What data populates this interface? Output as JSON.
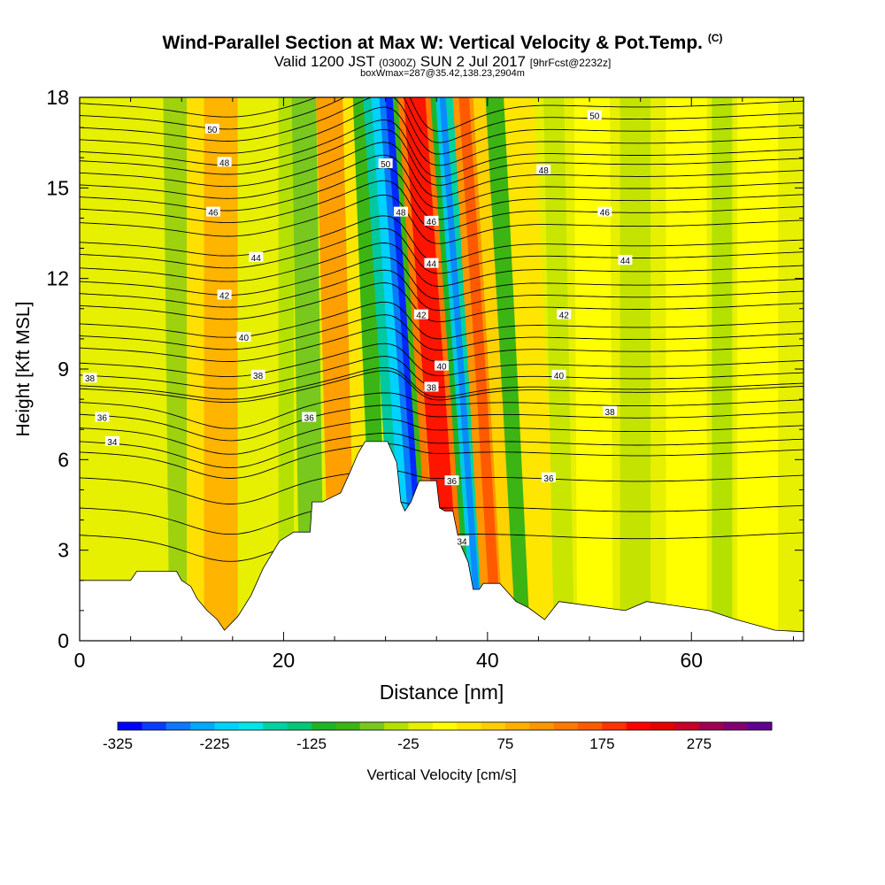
{
  "titles": {
    "main": "Wind-Parallel Section at Max W: Vertical Velocity & Pot.Temp.",
    "copyright": "(C)",
    "valid_prefix": "Valid 1200 JST",
    "valid_utc": "(0300Z)",
    "valid_date": "SUN 2 Jul 2017",
    "forecast": "[9hrFcst@2232z]",
    "box_info": "boxWmax=287@35.42,138.23,2904m"
  },
  "chart_data": {
    "type": "heatmap",
    "title": "Wind-Parallel Section at Max W: Vertical Velocity & Pot.Temp.",
    "xlabel": "Distance [nm]",
    "ylabel": "Height [Kft MSL]",
    "xlim": [
      0,
      71
    ],
    "ylim": [
      0,
      18
    ],
    "x_ticks": [
      "0",
      "20",
      "40",
      "60"
    ],
    "y_ticks": [
      "0",
      "3",
      "6",
      "9",
      "12",
      "15",
      "18"
    ],
    "colorbar": {
      "label": "Vertical Velocity [cm/s]",
      "tick_labels": [
        "-325",
        "-225",
        "-125",
        "-25",
        "75",
        "175",
        "275"
      ],
      "colors": [
        "#0000ff",
        "#0a3cff",
        "#0a78ff",
        "#00a8ff",
        "#00d2ff",
        "#00e6e6",
        "#00d2a0",
        "#00c878",
        "#1eb428",
        "#3cb414",
        "#78c81e",
        "#b4e100",
        "#e6f000",
        "#ffff00",
        "#ffe600",
        "#ffcd00",
        "#ffaf00",
        "#ff9600",
        "#ff7800",
        "#ff5a00",
        "#ff3200",
        "#ff0000",
        "#e60000",
        "#c80028",
        "#a00050",
        "#800070",
        "#600090"
      ]
    },
    "terrain": [
      [
        0,
        2.0
      ],
      [
        5,
        2.0
      ],
      [
        5.6,
        2.3
      ],
      [
        9.5,
        2.3
      ],
      [
        10,
        2.0
      ],
      [
        10.9,
        1.8
      ],
      [
        11.5,
        1.4
      ],
      [
        12.5,
        1.0
      ],
      [
        13.5,
        0.7
      ],
      [
        14.2,
        0.35
      ],
      [
        15.5,
        0.8
      ],
      [
        16.8,
        1.5
      ],
      [
        18,
        2.4
      ],
      [
        19.6,
        3.3
      ],
      [
        21,
        3.6
      ],
      [
        22.6,
        3.6
      ],
      [
        22.8,
        4.6
      ],
      [
        23.8,
        4.6
      ],
      [
        25.6,
        4.9
      ],
      [
        26.4,
        5.5
      ],
      [
        27.3,
        6.2
      ],
      [
        28,
        6.6
      ],
      [
        30.2,
        6.6
      ],
      [
        31.1,
        5.9
      ],
      [
        31.5,
        4.6
      ],
      [
        31.9,
        4.3
      ],
      [
        32.5,
        4.6
      ],
      [
        33.3,
        5.3
      ],
      [
        35,
        5.3
      ],
      [
        35.3,
        4.4
      ],
      [
        35.8,
        4.3
      ],
      [
        36.6,
        4.3
      ],
      [
        37.2,
        3.3
      ],
      [
        38.1,
        2.6
      ],
      [
        38.6,
        1.7
      ],
      [
        39.2,
        1.7
      ],
      [
        39.6,
        1.9
      ],
      [
        41.2,
        1.9
      ],
      [
        42,
        1.6
      ],
      [
        42.8,
        1.3
      ],
      [
        44,
        1.1
      ],
      [
        45.6,
        0.7
      ],
      [
        47,
        1.3
      ],
      [
        53.5,
        1.0
      ],
      [
        55.6,
        1.3
      ],
      [
        61.7,
        1.0
      ],
      [
        64.4,
        0.7
      ],
      [
        68.2,
        0.35
      ],
      [
        71,
        0.3
      ]
    ],
    "theta_contours": [
      {
        "label": "34",
        "base": 6.25,
        "label_x": 3.2
      },
      {
        "label": "36",
        "base": 7.05,
        "label_x": 2.2
      },
      {
        "label": "38",
        "base": 8.35,
        "label_x": 1.0
      },
      {
        "label": "38",
        "base": 8.45,
        "label_x": 17.5
      },
      {
        "label": "40",
        "base": 9.7,
        "label_x": 16.1
      },
      {
        "label": "42",
        "base": 11.1,
        "label_x": 14.2
      },
      {
        "label": "44",
        "base": 12.35,
        "label_x": 17.3
      },
      {
        "label": "46",
        "base": 13.85,
        "label_x": 13.1
      },
      {
        "label": "48",
        "base": 15.5,
        "label_x": 14.2
      },
      {
        "label": "50",
        "base": 16.6,
        "label_x": 13.0
      }
    ],
    "theta_right_labels": [
      {
        "label": "36",
        "x": 46.0,
        "y": 5.4
      },
      {
        "label": "38",
        "x": 52.0,
        "y": 7.6
      },
      {
        "label": "40",
        "x": 47.0,
        "y": 8.8
      },
      {
        "label": "42",
        "x": 47.5,
        "y": 10.8
      },
      {
        "label": "44",
        "x": 53.5,
        "y": 12.6
      },
      {
        "label": "46",
        "x": 51.5,
        "y": 14.2
      },
      {
        "label": "48",
        "x": 45.5,
        "y": 15.6
      },
      {
        "label": "50",
        "x": 50.5,
        "y": 17.4
      },
      {
        "label": "36",
        "x": 22.5,
        "y": 7.4
      },
      {
        "label": "50",
        "x": 30.0,
        "y": 15.8
      },
      {
        "label": "48",
        "x": 31.5,
        "y": 14.2
      },
      {
        "label": "46",
        "x": 34.5,
        "y": 13.9
      },
      {
        "label": "44",
        "x": 34.5,
        "y": 12.5
      },
      {
        "label": "42",
        "x": 33.5,
        "y": 10.8
      },
      {
        "label": "40",
        "x": 35.5,
        "y": 9.1
      },
      {
        "label": "38",
        "x": 34.5,
        "y": 8.4
      },
      {
        "label": "36",
        "x": 36.5,
        "y": 5.3
      },
      {
        "label": "34",
        "x": 37.5,
        "y": 3.3
      }
    ]
  }
}
